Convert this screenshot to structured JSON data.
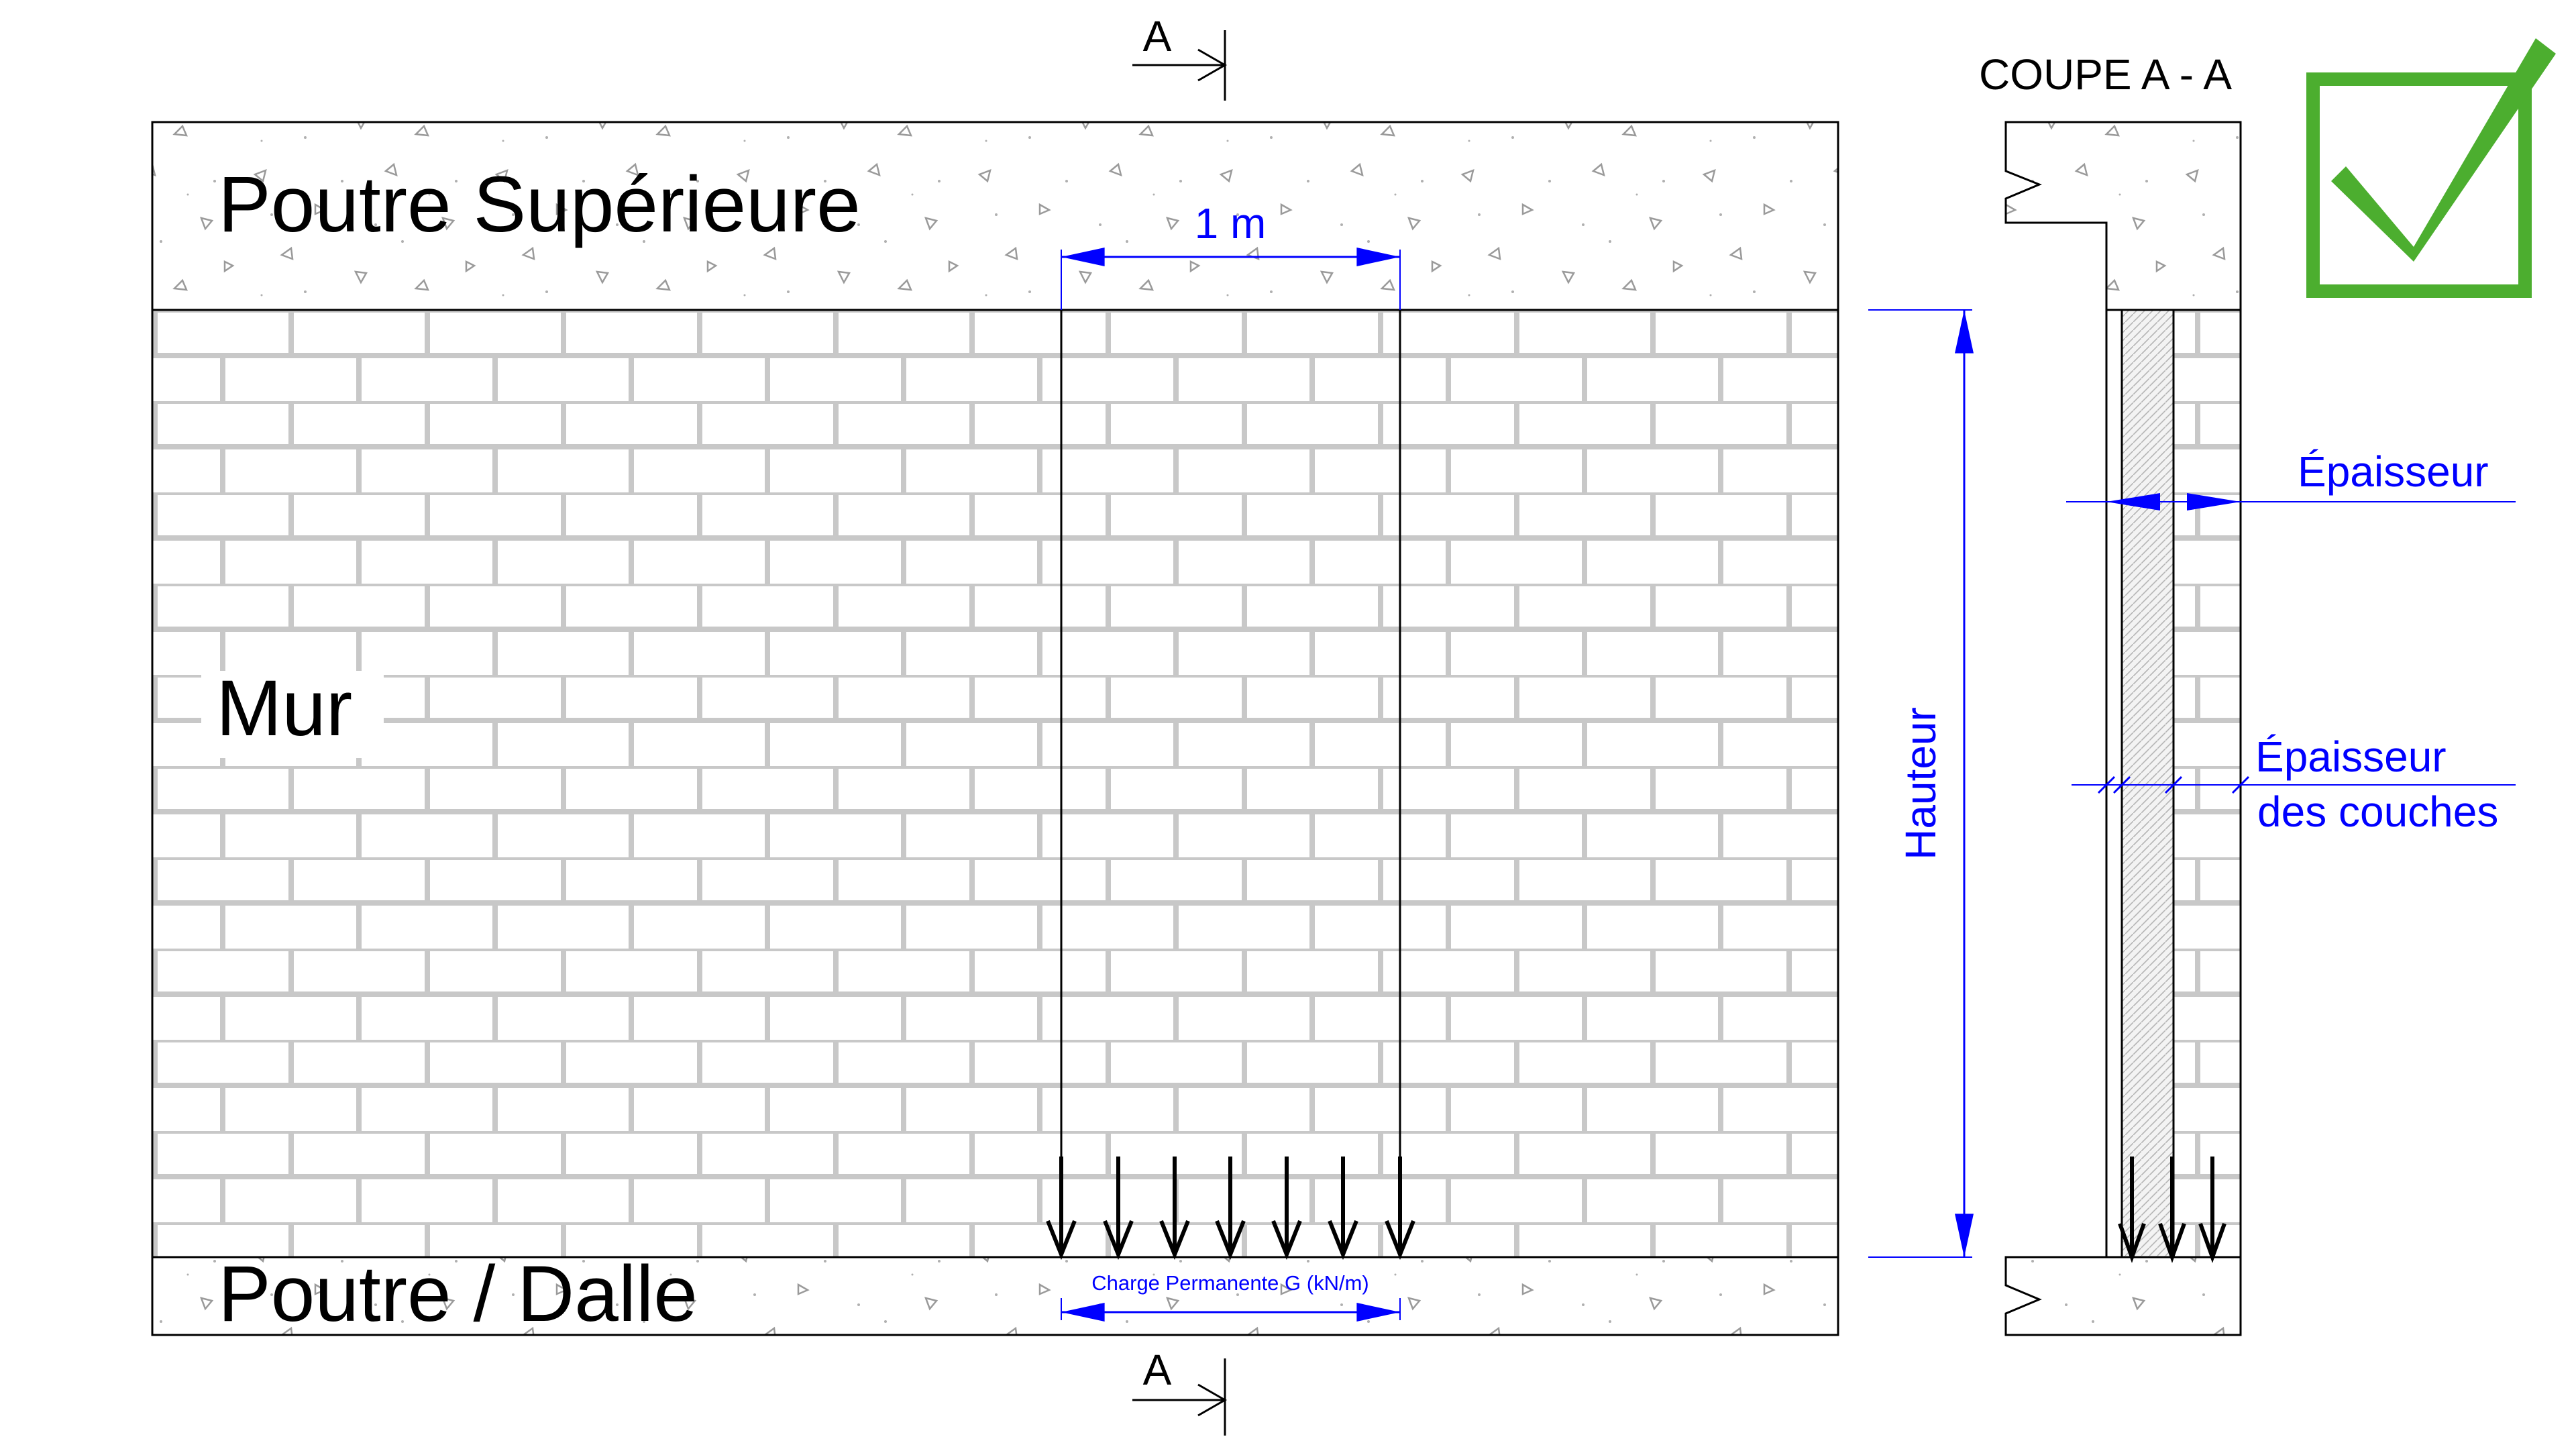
{
  "labels": {
    "top_beam": "Poutre Supérieure",
    "wall": "Mur",
    "bottom_beam": "Poutre / Dalle",
    "section_title": "COUPE A - A",
    "section_mark_top": "A",
    "section_mark_bottom": "A",
    "width_dimension": "1 m",
    "height_dimension": "Hauteur",
    "thickness": "Épaisseur",
    "layer_thickness_line1": "Épaisseur",
    "layer_thickness_line2": "des couches",
    "load": "Charge Permanente G (kN/m)"
  },
  "colors": {
    "dimension_blue": "#0000ff",
    "brick_joint": "#c8c8c8",
    "outline": "#000000",
    "check_green": "#4cae2f"
  },
  "icons": {
    "check": "check-mark-icon"
  }
}
